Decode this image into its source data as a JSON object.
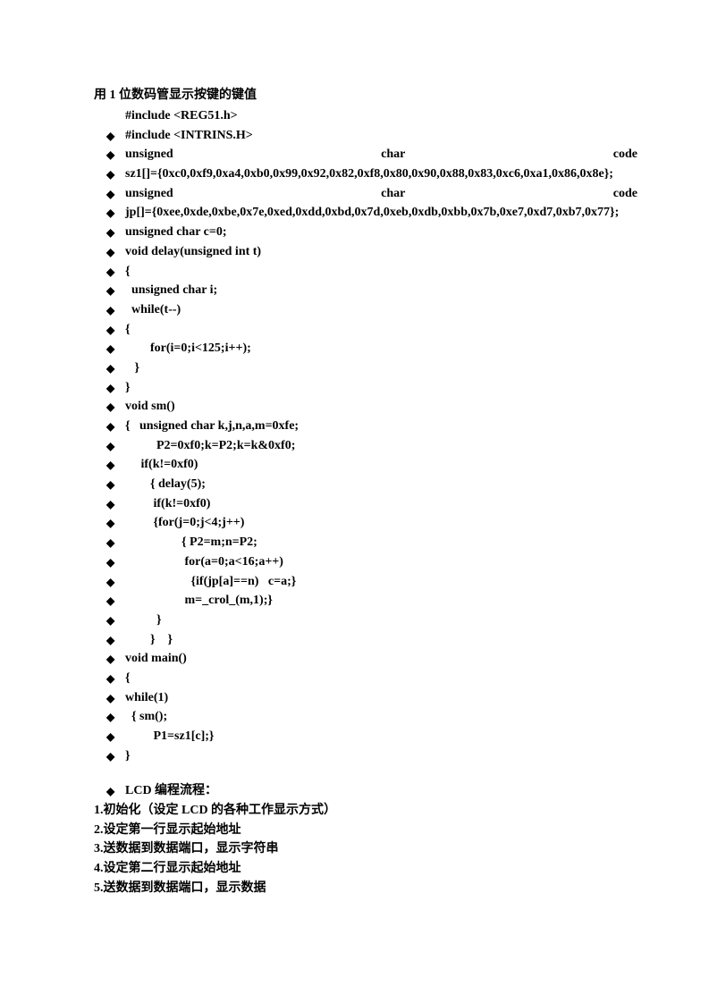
{
  "title": "用 1 位数码管显示按键的键值",
  "line_include1": "#include <REG51.h>",
  "code": [
    {
      "type": "plain",
      "text": "#include <INTRINS.H>"
    },
    {
      "type": "justify",
      "parts": [
        "unsigned",
        "char",
        "code"
      ]
    },
    {
      "type": "plain",
      "text": "sz1[]={0xc0,0xf9,0xa4,0xb0,0x99,0x92,0x82,0xf8,0x80,0x90,0x88,0x83,0xc6,0xa1,0x86,0x8e};"
    },
    {
      "type": "justify",
      "parts": [
        "unsigned",
        "char",
        "code"
      ]
    },
    {
      "type": "plain",
      "text": "jp[]={0xee,0xde,0xbe,0x7e,0xed,0xdd,0xbd,0x7d,0xeb,0xdb,0xbb,0x7b,0xe7,0xd7,0xb7,0x77};"
    },
    {
      "type": "plain",
      "text": "unsigned char c=0;"
    },
    {
      "type": "plain",
      "text": "void delay(unsigned int t)"
    },
    {
      "type": "plain",
      "text": "{"
    },
    {
      "type": "plain",
      "text": "  unsigned char i;"
    },
    {
      "type": "plain",
      "text": "  while(t--)"
    },
    {
      "type": "plain",
      "text": "{"
    },
    {
      "type": "plain",
      "text": "        for(i=0;i<125;i++);"
    },
    {
      "type": "plain",
      "text": "   }"
    },
    {
      "type": "plain",
      "text": "}"
    },
    {
      "type": "plain",
      "text": "void sm()"
    },
    {
      "type": "plain",
      "text": "{   unsigned char k,j,n,a,m=0xfe;"
    },
    {
      "type": "plain",
      "text": "          P2=0xf0;k=P2;k=k&0xf0;"
    },
    {
      "type": "plain",
      "text": "     if(k!=0xf0)"
    },
    {
      "type": "plain",
      "text": "        { delay(5);"
    },
    {
      "type": "plain",
      "text": "         if(k!=0xf0)"
    },
    {
      "type": "plain",
      "text": "         {for(j=0;j<4;j++)"
    },
    {
      "type": "plain",
      "text": "                  { P2=m;n=P2;"
    },
    {
      "type": "plain",
      "text": "                   for(a=0;a<16;a++)"
    },
    {
      "type": "plain",
      "text": "                     {if(jp[a]==n)   c=a;}"
    },
    {
      "type": "plain",
      "text": "                   m=_crol_(m,1);}"
    },
    {
      "type": "plain",
      "text": "          }"
    },
    {
      "type": "plain",
      "text": "        }    }"
    },
    {
      "type": "plain",
      "text": "void main()"
    },
    {
      "type": "plain",
      "text": "{"
    },
    {
      "type": "plain",
      "text": "while(1)"
    },
    {
      "type": "plain",
      "text": "  { sm();"
    },
    {
      "type": "plain",
      "text": "         P1=sz1[c];}"
    },
    {
      "type": "plain",
      "text": "}"
    }
  ],
  "lcd_heading": "LCD 编程流程：",
  "steps": [
    "1.初始化（设定 LCD 的各种工作显示方式）",
    "2.设定第一行显示起始地址",
    "3.送数据到数据端口，显示字符串",
    "4.设定第二行显示起始地址",
    "5.送数据到数据端口，显示数据"
  ]
}
